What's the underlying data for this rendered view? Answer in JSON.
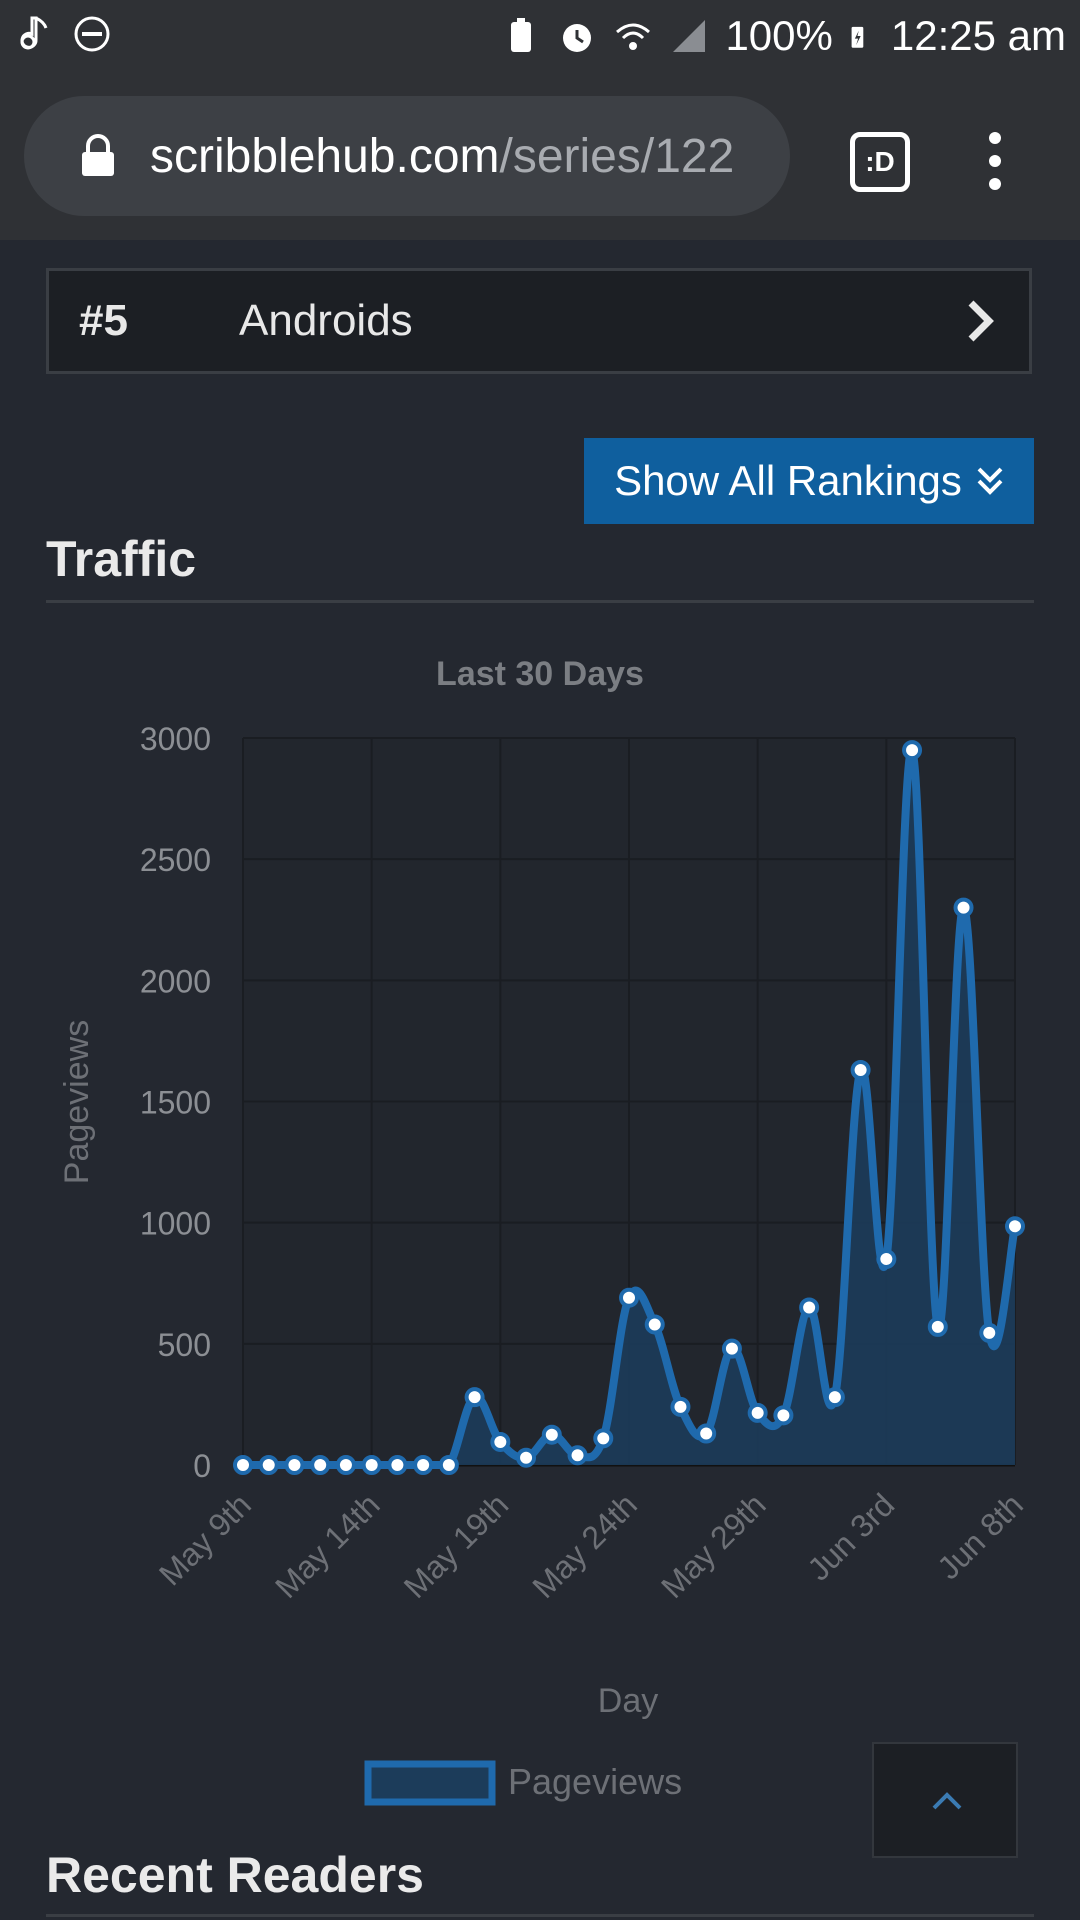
{
  "status_bar": {
    "battery": "100%",
    "time": "12:25 am"
  },
  "browser": {
    "url_domain": "scribblehub.com",
    "url_path": "/series/122",
    "tab_button_label": ":D"
  },
  "ranking": {
    "rank": "#5",
    "name": "Androids",
    "show_all_label": "Show All Rankings"
  },
  "traffic": {
    "heading": "Traffic"
  },
  "recent_readers": {
    "heading": "Recent Readers"
  },
  "chart_data": {
    "type": "area",
    "title": "Last 30 Days",
    "xlabel": "Day",
    "ylabel": "Pageviews",
    "ylim": [
      0,
      3000
    ],
    "yticks": [
      0,
      500,
      1000,
      1500,
      2000,
      2500,
      3000
    ],
    "xtick_labels": [
      "May 9th",
      "May 14th",
      "May 19th",
      "May 24th",
      "May 29th",
      "Jun 3rd",
      "Jun 8th"
    ],
    "x": [
      "May 9th",
      "May 10th",
      "May 11th",
      "May 12th",
      "May 13th",
      "May 14th",
      "May 15th",
      "May 16th",
      "May 17th",
      "May 18th",
      "May 19th",
      "May 20th",
      "May 21st",
      "May 22nd",
      "May 23rd",
      "May 24th",
      "May 25th",
      "May 26th",
      "May 27th",
      "May 28th",
      "May 29th",
      "May 30th",
      "May 31st",
      "Jun 1st",
      "Jun 2nd",
      "Jun 3rd",
      "Jun 4th",
      "Jun 5th",
      "Jun 6th",
      "Jun 7th",
      "Jun 8th"
    ],
    "series": [
      {
        "name": "Pageviews",
        "values": [
          0,
          0,
          0,
          0,
          0,
          0,
          0,
          0,
          0,
          280,
          95,
          30,
          125,
          40,
          110,
          690,
          580,
          240,
          130,
          480,
          215,
          205,
          650,
          280,
          1630,
          850,
          2950,
          570,
          2300,
          545,
          985
        ]
      }
    ],
    "legend": "bottom-center",
    "grid": true,
    "colors": {
      "line": "#1f6aad",
      "fill": "#1c3c5a",
      "point": "#ffffff"
    }
  }
}
